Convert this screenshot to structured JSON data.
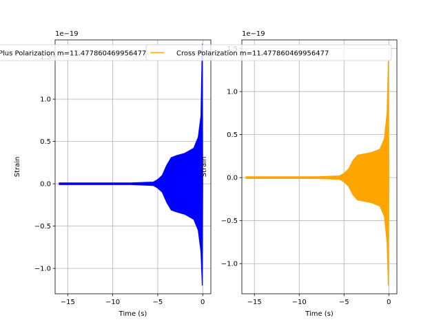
{
  "chart_data": [
    {
      "type": "line",
      "title": "",
      "xlabel": "Time (s)",
      "ylabel": "Strain",
      "offset_label": "1e−19",
      "xlim": [
        -16.4,
        0.9
      ],
      "ylim": [
        -1.3,
        1.7
      ],
      "xticks": [
        -15,
        -10,
        -5,
        0
      ],
      "xtick_labels": [
        "−15",
        "−10",
        "−5",
        "0"
      ],
      "yticks": [
        -1.0,
        -0.5,
        0.0,
        0.5,
        1.0,
        1.5
      ],
      "ytick_labels": [
        "−1.0",
        "−0.5",
        "0.0",
        "0.5",
        "1.0",
        "1.5"
      ],
      "grid": true,
      "legend": "upper",
      "series": [
        {
          "name": "Plus Polarization m=11.477860469956477",
          "color": "#0000ff",
          "x": [
            -15.95,
            -12,
            -8,
            -5.5,
            -5,
            -4.5,
            -4,
            -3.5,
            -3,
            -2,
            -1,
            -0.5,
            -0.2,
            -0.05,
            0
          ],
          "y_upper": [
            0.01,
            0.01,
            0.01,
            0.02,
            0.05,
            0.1,
            0.22,
            0.31,
            0.33,
            0.36,
            0.42,
            0.55,
            0.8,
            1.65,
            0
          ],
          "y_lower": [
            -0.01,
            -0.01,
            -0.01,
            -0.02,
            -0.05,
            -0.1,
            -0.22,
            -0.31,
            -0.33,
            -0.36,
            -0.42,
            -0.55,
            -0.8,
            -1.2,
            0
          ]
        }
      ]
    },
    {
      "type": "line",
      "title": "",
      "xlabel": "Time (s)",
      "ylabel": "Strain",
      "offset_label": "1e−19",
      "xlim": [
        -16.4,
        0.9
      ],
      "ylim": [
        -1.35,
        1.6
      ],
      "xticks": [
        -15,
        -10,
        -5,
        0
      ],
      "xtick_labels": [
        "−15",
        "−10",
        "−5",
        "0"
      ],
      "yticks": [
        -1.0,
        -0.5,
        0.0,
        0.5,
        1.0,
        1.5
      ],
      "ytick_labels": [
        "−1.0",
        "−0.5",
        "0.0",
        "0.5",
        "1.0",
        "1.5"
      ],
      "grid": true,
      "legend": "upper",
      "series": [
        {
          "name": "Cross Polarization m=11.477860469956477",
          "color": "#ffa500",
          "x": [
            -15.95,
            -12,
            -8,
            -5.5,
            -5,
            -4.5,
            -4,
            -3.5,
            -3,
            -2,
            -1,
            -0.5,
            -0.2,
            -0.05,
            0
          ],
          "y_upper": [
            0.01,
            0.01,
            0.01,
            0.02,
            0.05,
            0.1,
            0.2,
            0.26,
            0.27,
            0.29,
            0.33,
            0.45,
            0.75,
            1.35,
            0
          ],
          "y_lower": [
            -0.01,
            -0.01,
            -0.01,
            -0.02,
            -0.05,
            -0.1,
            -0.2,
            -0.26,
            -0.27,
            -0.29,
            -0.33,
            -0.45,
            -0.75,
            -1.25,
            0
          ]
        }
      ]
    }
  ]
}
